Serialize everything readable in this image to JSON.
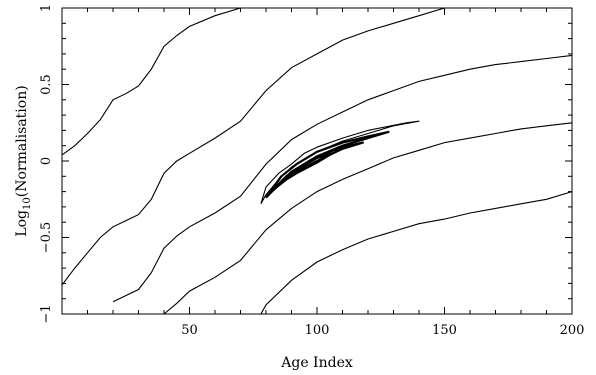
{
  "chart_data": {
    "type": "line",
    "title": "",
    "xlabel": "Age Index",
    "ylabel_prefix": "Log",
    "ylabel_sub": "10",
    "ylabel_suffix": "(Normalisation)",
    "xlim": [
      0,
      200
    ],
    "ylim": [
      -1,
      1
    ],
    "grid": false,
    "legend": "none",
    "x_ticks": [
      {
        "value": 50,
        "label": "50"
      },
      {
        "value": 100,
        "label": "100"
      },
      {
        "value": 150,
        "label": "150"
      },
      {
        "value": 200,
        "label": "200"
      }
    ],
    "y_ticks": [
      {
        "value": -1,
        "label": "−1"
      },
      {
        "value": -0.5,
        "label": "−0.5"
      },
      {
        "value": 0,
        "label": "0"
      },
      {
        "value": 0.5,
        "label": "0.5"
      },
      {
        "value": 1,
        "label": "1"
      }
    ],
    "outer_contours": [
      {
        "points": [
          [
            0,
            0.04
          ],
          [
            5,
            0.1
          ],
          [
            10,
            0.18
          ],
          [
            15,
            0.27
          ],
          [
            20,
            0.4
          ],
          [
            25,
            0.44
          ],
          [
            30,
            0.49
          ],
          [
            35,
            0.6
          ],
          [
            40,
            0.75
          ],
          [
            45,
            0.82
          ],
          [
            50,
            0.88
          ],
          [
            60,
            0.95
          ],
          [
            70,
            1.0
          ]
        ]
      },
      {
        "points": [
          [
            0,
            -0.81
          ],
          [
            5,
            -0.7
          ],
          [
            10,
            -0.6
          ],
          [
            15,
            -0.5
          ],
          [
            20,
            -0.43
          ],
          [
            25,
            -0.39
          ],
          [
            30,
            -0.35
          ],
          [
            35,
            -0.25
          ],
          [
            40,
            -0.08
          ],
          [
            45,
            0.0
          ],
          [
            50,
            0.05
          ],
          [
            60,
            0.15
          ],
          [
            70,
            0.26
          ],
          [
            80,
            0.46
          ],
          [
            90,
            0.61
          ],
          [
            100,
            0.7
          ],
          [
            110,
            0.79
          ],
          [
            120,
            0.85
          ],
          [
            130,
            0.9
          ],
          [
            140,
            0.95
          ],
          [
            150,
            1.0
          ]
        ]
      },
      {
        "points": [
          [
            20,
            -0.92
          ],
          [
            25,
            -0.88
          ],
          [
            30,
            -0.84
          ],
          [
            35,
            -0.73
          ],
          [
            40,
            -0.57
          ],
          [
            45,
            -0.49
          ],
          [
            50,
            -0.43
          ],
          [
            60,
            -0.34
          ],
          [
            70,
            -0.23
          ],
          [
            80,
            -0.02
          ],
          [
            90,
            0.14
          ],
          [
            100,
            0.24
          ],
          [
            110,
            0.32
          ],
          [
            120,
            0.4
          ],
          [
            130,
            0.46
          ],
          [
            140,
            0.52
          ],
          [
            150,
            0.56
          ],
          [
            160,
            0.6
          ],
          [
            170,
            0.63
          ],
          [
            180,
            0.65
          ],
          [
            190,
            0.67
          ],
          [
            200,
            0.69
          ]
        ]
      },
      {
        "points": [
          [
            40,
            -1.0
          ],
          [
            45,
            -0.93
          ],
          [
            50,
            -0.85
          ],
          [
            60,
            -0.76
          ],
          [
            70,
            -0.65
          ],
          [
            80,
            -0.45
          ],
          [
            90,
            -0.31
          ],
          [
            100,
            -0.2
          ],
          [
            110,
            -0.12
          ],
          [
            120,
            -0.05
          ],
          [
            130,
            0.02
          ],
          [
            140,
            0.07
          ],
          [
            150,
            0.12
          ],
          [
            160,
            0.15
          ],
          [
            170,
            0.18
          ],
          [
            180,
            0.21
          ],
          [
            190,
            0.23
          ],
          [
            200,
            0.25
          ]
        ]
      },
      {
        "points": [
          [
            78,
            -1.0
          ],
          [
            80,
            -0.94
          ],
          [
            90,
            -0.78
          ],
          [
            100,
            -0.66
          ],
          [
            110,
            -0.58
          ],
          [
            120,
            -0.51
          ],
          [
            130,
            -0.46
          ],
          [
            140,
            -0.41
          ],
          [
            150,
            -0.38
          ],
          [
            160,
            -0.34
          ],
          [
            170,
            -0.31
          ],
          [
            180,
            -0.28
          ],
          [
            190,
            -0.25
          ],
          [
            200,
            -0.2
          ]
        ]
      }
    ],
    "inner_contours": [
      {
        "points": [
          [
            78,
            -0.28
          ],
          [
            80,
            -0.22
          ],
          [
            85,
            -0.12
          ],
          [
            90,
            -0.04
          ],
          [
            100,
            0.06
          ],
          [
            110,
            0.13
          ],
          [
            120,
            0.18
          ],
          [
            130,
            0.23
          ],
          [
            140,
            0.26
          ],
          [
            135,
            0.25
          ],
          [
            120,
            0.2
          ],
          [
            110,
            0.15
          ],
          [
            100,
            0.09
          ],
          [
            95,
            0.05
          ],
          [
            90,
            -0.02
          ],
          [
            85,
            -0.08
          ],
          [
            80,
            -0.17
          ],
          [
            78,
            -0.28
          ]
        ]
      },
      {
        "points": [
          [
            80,
            -0.24
          ],
          [
            85,
            -0.15
          ],
          [
            90,
            -0.07
          ],
          [
            100,
            0.03
          ],
          [
            110,
            0.1
          ],
          [
            120,
            0.15
          ],
          [
            128,
            0.19
          ],
          [
            120,
            0.16
          ],
          [
            110,
            0.12
          ],
          [
            100,
            0.06
          ],
          [
            92,
            -0.02
          ],
          [
            86,
            -0.1
          ],
          [
            80,
            -0.24
          ]
        ]
      },
      {
        "points": [
          [
            81,
            -0.22
          ],
          [
            86,
            -0.14
          ],
          [
            90,
            -0.09
          ],
          [
            100,
            0.0
          ],
          [
            110,
            0.08
          ],
          [
            118,
            0.12
          ],
          [
            110,
            0.09
          ],
          [
            100,
            0.03
          ],
          [
            94,
            -0.03
          ],
          [
            88,
            -0.1
          ],
          [
            81,
            -0.22
          ]
        ]
      },
      {
        "points": [
          [
            82,
            -0.2
          ],
          [
            88,
            -0.12
          ],
          [
            92,
            -0.08
          ],
          [
            100,
            -0.01
          ],
          [
            106,
            0.05
          ],
          [
            100,
            0.02
          ],
          [
            94,
            -0.04
          ],
          [
            88,
            -0.1
          ],
          [
            82,
            -0.2
          ]
        ]
      }
    ]
  }
}
